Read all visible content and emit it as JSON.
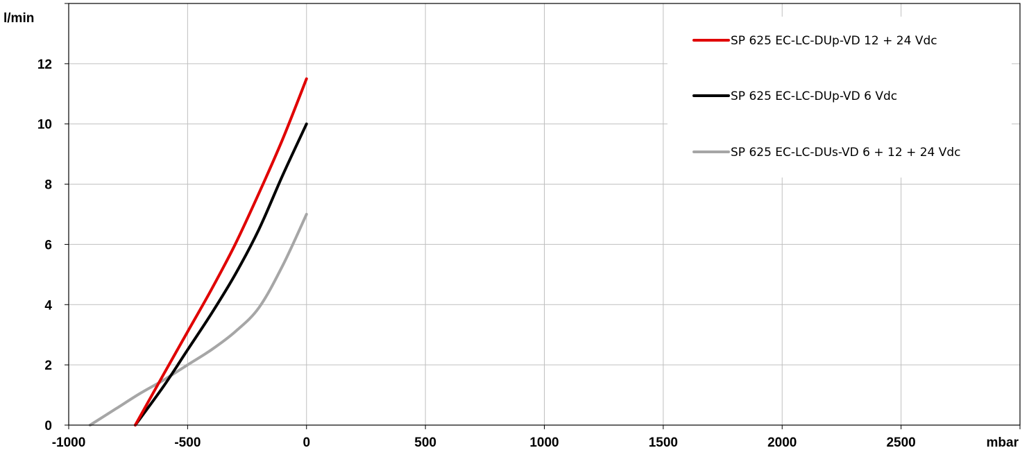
{
  "chart_data": {
    "type": "line",
    "xlabel": "mbar",
    "ylabel": "l/min",
    "xlim": [
      -1000,
      3000
    ],
    "ylim": [
      0,
      14
    ],
    "x_ticks": [
      -1000,
      -500,
      0,
      500,
      1000,
      1500,
      2000,
      2500
    ],
    "y_ticks": [
      0,
      2,
      4,
      6,
      8,
      10,
      12
    ],
    "grid": true,
    "legend_position": "top-right",
    "series": [
      {
        "name": "SP 625 EC-LC-DUp-VD 12 + 24 Vdc",
        "color": "#e00000",
        "x": [
          -720,
          -600,
          -500,
          -400,
          -300,
          -200,
          -100,
          0
        ],
        "y": [
          0,
          1.7,
          3.1,
          4.5,
          6.0,
          7.7,
          9.5,
          11.5
        ]
      },
      {
        "name": "SP 625 EC-LC-DUp-VD 6 Vdc",
        "color": "#000000",
        "x": [
          -720,
          -600,
          -500,
          -400,
          -300,
          -200,
          -100,
          0
        ],
        "y": [
          0,
          1.3,
          2.5,
          3.7,
          5.0,
          6.5,
          8.3,
          10.0
        ]
      },
      {
        "name": "SP 625 EC-LC-DUs-VD 6 + 12 + 24 Vdc",
        "color": "#a6a6a6",
        "x": [
          -910,
          -800,
          -700,
          -600,
          -500,
          -400,
          -300,
          -200,
          -100,
          0
        ],
        "y": [
          0,
          0.55,
          1.05,
          1.5,
          2.0,
          2.5,
          3.1,
          3.9,
          5.3,
          7.0
        ]
      }
    ]
  }
}
